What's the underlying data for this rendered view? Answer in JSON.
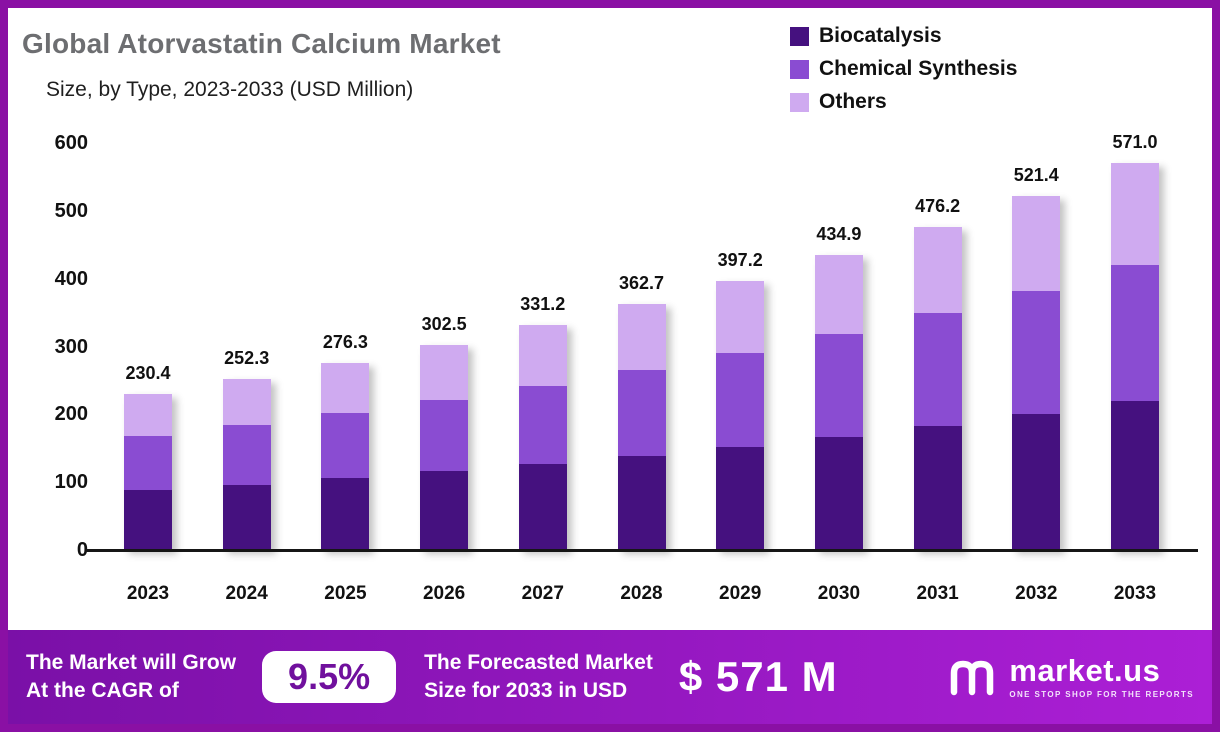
{
  "header": {
    "title": "Global Atorvastatin Calcium Market",
    "subtitle": "Size, by Type, 2023-2033 (USD Million)"
  },
  "legend": [
    {
      "label": "Biocatalysis",
      "color": "#45117f"
    },
    {
      "label": "Chemical Synthesis",
      "color": "#8a4cd2"
    },
    {
      "label": "Others",
      "color": "#cfaaf0"
    }
  ],
  "chart_data": {
    "type": "bar",
    "stacked": true,
    "title": "Global Atorvastatin Calcium Market Size, by Type, 2023-2033 (USD Million)",
    "xlabel": "",
    "ylabel": "USD Million",
    "ylim": [
      0,
      600
    ],
    "yticks": [
      0,
      100,
      200,
      300,
      400,
      500,
      600
    ],
    "grid": false,
    "legend_position": "top-right",
    "categories": [
      "2023",
      "2024",
      "2025",
      "2026",
      "2027",
      "2028",
      "2029",
      "2030",
      "2031",
      "2032",
      "2033"
    ],
    "series": [
      {
        "name": "Biocatalysis",
        "color": "#45117f",
        "values": [
          88,
          96,
          106,
          116,
          127,
          139,
          152,
          167,
          183,
          200,
          220
        ]
      },
      {
        "name": "Chemical Synthesis",
        "color": "#8a4cd2",
        "values": [
          80,
          88,
          96,
          105,
          115,
          126,
          138,
          151,
          166,
          182,
          200
        ]
      },
      {
        "name": "Others",
        "color": "#cfaaf0",
        "values": [
          62.4,
          68.3,
          74.3,
          81.5,
          89.2,
          97.7,
          107.2,
          116.9,
          127.2,
          139.4,
          151.0
        ]
      }
    ],
    "totals": [
      230.4,
      252.3,
      276.3,
      302.5,
      331.2,
      362.7,
      397.2,
      434.9,
      476.2,
      521.4,
      571.0
    ]
  },
  "banner": {
    "left_line1": "The Market will Grow",
    "left_line2": "At the CAGR of",
    "cagr": "9.5%",
    "mid_line1": "The Forecasted Market",
    "mid_line2": "Size for 2033 in USD",
    "value": "$ 571 M",
    "brand": "market.us",
    "tagline": "ONE STOP SHOP FOR THE REPORTS",
    "gradient": [
      "#7a10a7",
      "#ac1fd6"
    ],
    "pill_text_color": "#70109d"
  },
  "colors": {
    "frame_border": "#8a10a4",
    "axis": "#161616",
    "title_gray": "#6d6e71"
  }
}
